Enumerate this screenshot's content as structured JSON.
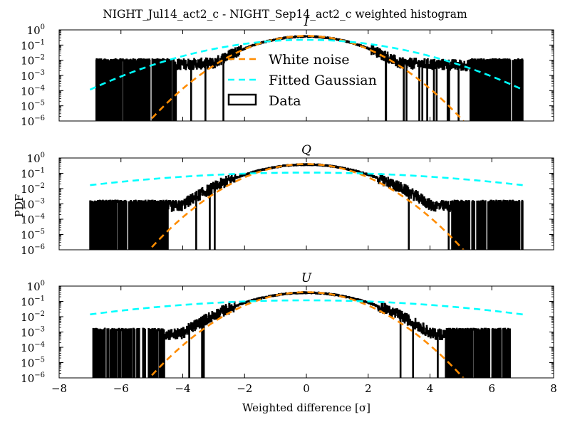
{
  "figure": {
    "title": "NIGHT_Jul14_act2_c - NIGHT_Sep14_act2_c weighted histogram",
    "xlabel": "Weighted difference [σ]",
    "ylabel": "PDF"
  },
  "legend": {
    "placement": "center-left of top panel",
    "entries": [
      {
        "label": "White noise",
        "color": "#ff8c00",
        "style": "dashed"
      },
      {
        "label": "Fitted Gaussian",
        "color": "#00ffff",
        "style": "dashed"
      },
      {
        "label": "Data",
        "color": "#000000",
        "style": "box"
      }
    ]
  },
  "colors": {
    "data": "#000000",
    "white_noise": "#ff8c00",
    "fitted_gaussian": "#00ffff"
  },
  "chart_data": [
    {
      "type": "line",
      "panel_title": "I",
      "x": {
        "range": [
          -8,
          8
        ],
        "ticks": [
          -8,
          -6,
          -4,
          -2,
          0,
          2,
          4,
          6,
          8
        ],
        "tick_labels": [
          "−8",
          "−6",
          "−4",
          "−2",
          "0",
          "2",
          "4",
          "6",
          "8"
        ]
      },
      "y": {
        "scale": "log",
        "range": [
          1e-06,
          1
        ],
        "ticks": [
          "10^0",
          "10^-1",
          "10^-2",
          "10^-3",
          "10^-4",
          "10^-5",
          "10^-6"
        ]
      },
      "series": [
        {
          "name": "White noise",
          "kind": "gaussian",
          "mu": 0.0,
          "sigma": 1.0,
          "x_range": [
            -5.0,
            5.3
          ]
        },
        {
          "name": "Fitted Gaussian",
          "kind": "gaussian",
          "mu": 0.0,
          "sigma": 1.8,
          "x_range": [
            -7.0,
            7.0
          ]
        },
        {
          "name": "Data",
          "kind": "noisy-histogram",
          "core_sigma": 1.05,
          "tail_level": 0.01,
          "x_range": [
            -6.8,
            7.0
          ],
          "sparse_below": -4.3,
          "sparse_above": 5.3
        }
      ]
    },
    {
      "type": "line",
      "panel_title": "Q",
      "x": {
        "range": [
          -8,
          8
        ],
        "ticks": [
          -8,
          -6,
          -4,
          -2,
          0,
          2,
          4,
          6,
          8
        ],
        "tick_labels": [
          "−8",
          "−6",
          "−4",
          "−2",
          "0",
          "2",
          "4",
          "6",
          "8"
        ]
      },
      "y": {
        "scale": "log",
        "range": [
          1e-06,
          1
        ],
        "ticks": [
          "10^0",
          "10^-1",
          "10^-2",
          "10^-3",
          "10^-4",
          "10^-5",
          "10^-6"
        ]
      },
      "series": [
        {
          "name": "White noise",
          "kind": "gaussian",
          "mu": 0.0,
          "sigma": 1.0,
          "x_range": [
            -5.0,
            5.3
          ]
        },
        {
          "name": "Fitted Gaussian",
          "kind": "gaussian",
          "mu": 0.0,
          "sigma": 3.6,
          "x_range": [
            -7.0,
            7.0
          ]
        },
        {
          "name": "Data",
          "kind": "noisy-histogram",
          "core_sigma": 1.15,
          "tail_level": 0.0014,
          "x_range": [
            -7.0,
            7.0
          ],
          "sparse_below": -4.5,
          "sparse_above": 4.7
        }
      ]
    },
    {
      "type": "line",
      "panel_title": "U",
      "x": {
        "range": [
          -8,
          8
        ],
        "ticks": [
          -8,
          -6,
          -4,
          -2,
          0,
          2,
          4,
          6,
          8
        ],
        "tick_labels": [
          "−8",
          "−6",
          "−4",
          "−2",
          "0",
          "2",
          "4",
          "6",
          "8"
        ]
      },
      "y": {
        "scale": "log",
        "range": [
          1e-06,
          1
        ],
        "ticks": [
          "10^0",
          "10^-1",
          "10^-2",
          "10^-3",
          "10^-4",
          "10^-5",
          "10^-6"
        ]
      },
      "series": [
        {
          "name": "White noise",
          "kind": "gaussian",
          "mu": 0.0,
          "sigma": 1.0,
          "x_range": [
            -5.0,
            5.3
          ]
        },
        {
          "name": "Fitted Gaussian",
          "kind": "gaussian",
          "mu": 0.0,
          "sigma": 3.4,
          "x_range": [
            -7.0,
            7.0
          ]
        },
        {
          "name": "Data",
          "kind": "noisy-histogram",
          "core_sigma": 1.15,
          "tail_level": 0.0014,
          "x_range": [
            -6.9,
            6.6
          ],
          "sparse_below": -4.6,
          "sparse_above": 4.5
        }
      ]
    }
  ]
}
